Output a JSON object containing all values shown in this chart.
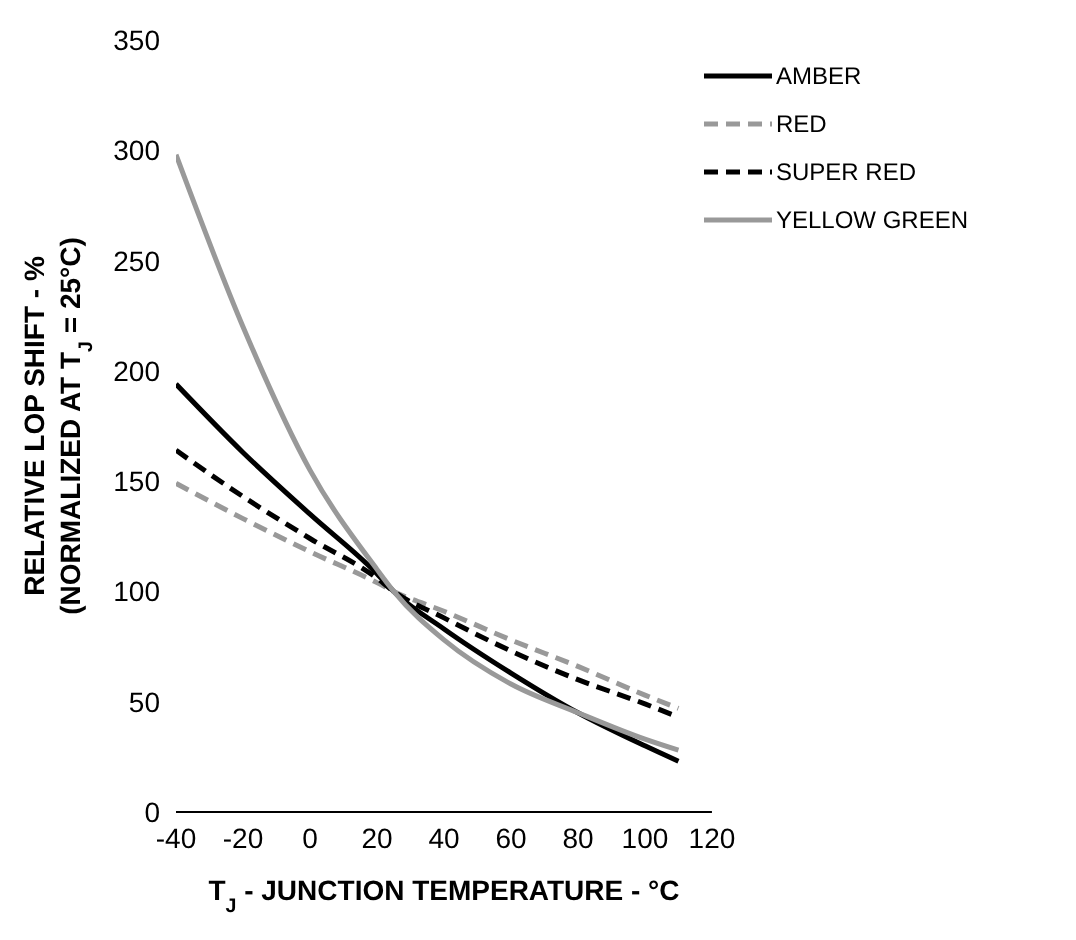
{
  "chart_data": {
    "type": "line",
    "xlabel": "T$_{J}$ - JUNCTION TEMPERATURE - °C",
    "ylabel": "RELATIVE LOP SHIFT - %\n(NORMALIZED AT T$_{J}$ = 25°C)",
    "x": [
      -40,
      -20,
      0,
      20,
      25,
      40,
      60,
      80,
      100,
      110
    ],
    "series": [
      {
        "name": "AMBER",
        "color": "#000000",
        "line_style": "solid",
        "values": [
          194,
          163,
          135,
          108,
          100,
          83,
          63,
          45,
          30,
          23
        ]
      },
      {
        "name": "RED",
        "color": "#999999",
        "line_style": "dashed",
        "values": [
          149,
          133,
          118,
          104,
          100,
          91,
          78,
          66,
          53,
          47
        ]
      },
      {
        "name": "SUPER RED",
        "color": "#000000",
        "line_style": "dashed",
        "values": [
          164,
          143,
          124,
          106,
          100,
          88,
          73,
          60,
          49,
          43
        ]
      },
      {
        "name": "YELLOW GREEN",
        "color": "#999999",
        "line_style": "solid",
        "values": [
          298,
          220,
          155,
          110,
          100,
          78,
          58,
          45,
          33,
          28
        ]
      }
    ],
    "xlim": [
      -40,
      120
    ],
    "xticks": [
      -40,
      -20,
      0,
      20,
      40,
      60,
      80,
      100,
      120
    ],
    "ylim": [
      0,
      350
    ],
    "yticks": [
      0,
      50,
      100,
      150,
      200,
      250,
      300,
      350
    ],
    "grid": false,
    "legend": "top right",
    "marker": "none"
  }
}
